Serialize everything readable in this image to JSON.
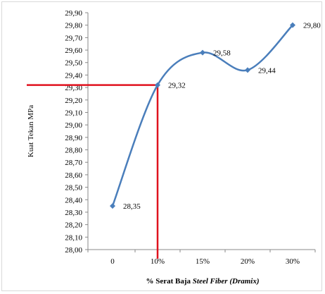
{
  "chart_data": {
    "type": "line",
    "title": "",
    "ylabel": "Kuat Tekan MPa",
    "xlabel_parts": [
      "% Serat Baja ",
      "Steel Fiber (Dramix)"
    ],
    "categories": [
      "0",
      "10%",
      "15%",
      "20%",
      "30%"
    ],
    "values": [
      28.35,
      29.32,
      29.58,
      29.44,
      29.8
    ],
    "data_labels": [
      "28,35",
      "29,32",
      "29,58",
      "29,44",
      "29,80"
    ],
    "ylim": [
      28.0,
      29.9
    ],
    "yticks": [
      "28,00",
      "28,10",
      "28,20",
      "28,30",
      "28,40",
      "28,50",
      "28,60",
      "28,70",
      "28,80",
      "28,90",
      "29,00",
      "29,10",
      "29,20",
      "29,30",
      "29,40",
      "29,50",
      "29,60",
      "29,70",
      "29,80",
      "29,90"
    ],
    "grid": false,
    "legend": "none",
    "series_color": "#4a7ebb",
    "reference_lines": {
      "color": "#e0121e",
      "category": "10%",
      "value": 29.32
    }
  }
}
